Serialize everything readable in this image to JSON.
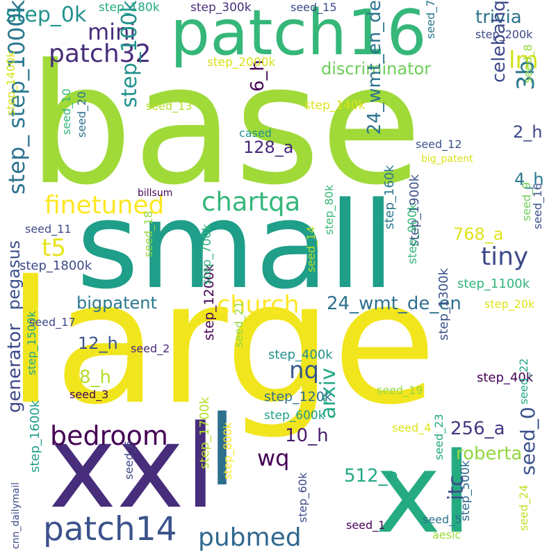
{
  "words": [
    {
      "text": "base",
      "color": "#a0da39"
    },
    {
      "text": "large",
      "color": "#f1e51d"
    },
    {
      "text": "small",
      "color": "#1f9e89"
    },
    {
      "text": "xxl",
      "color": "#472d7b"
    },
    {
      "text": "xl",
      "color": "#25ab82"
    },
    {
      "text": "patch16",
      "color": "#35b779"
    },
    {
      "text": "l",
      "color": "#2d708e"
    },
    {
      "text": "patch32",
      "color": "#472c7a"
    },
    {
      "text": "patch14",
      "color": "#3b528b"
    },
    {
      "text": "bedroom",
      "color": "#440154"
    },
    {
      "text": "finetuned",
      "color": "#fde725"
    },
    {
      "text": "chartqa",
      "color": "#35b779"
    },
    {
      "text": "church",
      "color": "#fde725"
    },
    {
      "text": "pubmed",
      "color": "#31688e"
    },
    {
      "text": "tiny",
      "color": "#3e4989"
    },
    {
      "text": "mini",
      "color": "#472d7b"
    },
    {
      "text": "step_0k",
      "color": "#21918c"
    },
    {
      "text": "step_1000k",
      "color": "#2a788e"
    },
    {
      "text": "step_100k",
      "color": "#21918c"
    },
    {
      "text": "discriminator",
      "color": "#6ece58"
    },
    {
      "text": "trivia",
      "color": "#2c728e"
    },
    {
      "text": "lm",
      "color": "#d2e21b"
    },
    {
      "text": "celebahq",
      "color": "#3e4989"
    },
    {
      "text": "3b",
      "color": "#2a788e"
    },
    {
      "text": "t5",
      "color": "#e5e419"
    },
    {
      "text": "nq",
      "color": "#38598c"
    },
    {
      "text": "wq",
      "color": "#440154"
    },
    {
      "text": "arxiv",
      "color": "#22a884"
    },
    {
      "text": "roberta",
      "color": "#93d741"
    },
    {
      "text": "seed_0",
      "color": "#3b528b"
    },
    {
      "text": "itc",
      "color": "#3e4a89"
    },
    {
      "text": "24_wmt_en_de",
      "color": "#2c728e"
    },
    {
      "text": "24_wmt_de_en",
      "color": "#2d708e"
    },
    {
      "text": "bigpatent",
      "color": "#2a788e"
    },
    {
      "text": "generator",
      "color": "#3e4989"
    },
    {
      "text": "pegasus",
      "color": "#3b528b"
    },
    {
      "text": "256_a",
      "color": "#453781"
    },
    {
      "text": "512_a",
      "color": "#22a884"
    },
    {
      "text": "768_a",
      "color": "#dde318"
    },
    {
      "text": "128_a",
      "color": "#482878"
    },
    {
      "text": "10_h",
      "color": "#481d6f"
    },
    {
      "text": "12_h",
      "color": "#3b528b"
    },
    {
      "text": "8_h",
      "color": "#b5de2b"
    },
    {
      "text": "6_h",
      "color": "#440154"
    },
    {
      "text": "4_h",
      "color": "#2a788e"
    },
    {
      "text": "2_h",
      "color": "#3e4989"
    },
    {
      "text": "step_",
      "color": "#2c728e"
    },
    {
      "text": "step_1100k",
      "color": "#2fb47c"
    },
    {
      "text": "step_1200k",
      "color": "#440154"
    },
    {
      "text": "step_1300k",
      "color": "#3b528b"
    },
    {
      "text": "step_1400k",
      "color": "#d8e219"
    },
    {
      "text": "step_1500k",
      "color": "#22a884"
    },
    {
      "text": "step_1600k",
      "color": "#1f9e89"
    },
    {
      "text": "step_1700k",
      "color": "#b5de2b"
    },
    {
      "text": "step_1800k",
      "color": "#3e4989"
    },
    {
      "text": "step_1900k",
      "color": "#3b528b"
    },
    {
      "text": "step_2000k",
      "color": "#d8e219"
    },
    {
      "text": "step_20k",
      "color": "#dde318"
    },
    {
      "text": "step_40k",
      "color": "#440154"
    },
    {
      "text": "step_60k",
      "color": "#3e4989"
    },
    {
      "text": "step_80k",
      "color": "#38b977"
    },
    {
      "text": "step_120k",
      "color": "#2d708e"
    },
    {
      "text": "step_140k",
      "color": "#dde318"
    },
    {
      "text": "step_160k",
      "color": "#2a788e"
    },
    {
      "text": "step_180k",
      "color": "#22a884"
    },
    {
      "text": "step_200k",
      "color": "#3e4989"
    },
    {
      "text": "step_300k",
      "color": "#472d7b"
    },
    {
      "text": "step_400k",
      "color": "#21918c"
    },
    {
      "text": "step_500k",
      "color": "#31688e"
    },
    {
      "text": "step_600k",
      "color": "#1f9e89"
    },
    {
      "text": "step_700k",
      "color": "#2fb47c"
    },
    {
      "text": "step_800k",
      "color": "#fde725"
    },
    {
      "text": "step_900k",
      "color": "#35b779"
    },
    {
      "text": "seed_1",
      "color": "#440154"
    },
    {
      "text": "seed_2",
      "color": "#482878"
    },
    {
      "text": "seed_3",
      "color": "#440154"
    },
    {
      "text": "seed_4",
      "color": "#dde318"
    },
    {
      "text": "seed_5",
      "color": "#2c728e"
    },
    {
      "text": "seed_6",
      "color": "#3e4989"
    },
    {
      "text": "seed_7",
      "color": "#2a788e"
    },
    {
      "text": "seed_8",
      "color": "#93d741"
    },
    {
      "text": "seed_9",
      "color": "#6ece58"
    },
    {
      "text": "seed_10",
      "color": "#35b779"
    },
    {
      "text": "seed_11",
      "color": "#3e4989"
    },
    {
      "text": "seed_12",
      "color": "#3b528b"
    },
    {
      "text": "seed_13",
      "color": "#b5de2b"
    },
    {
      "text": "seed_14",
      "color": "#b5de2b"
    },
    {
      "text": "seed_15",
      "color": "#3e4989"
    },
    {
      "text": "seed_16",
      "color": "#3b528b"
    },
    {
      "text": "seed_17",
      "color": "#3e4989"
    },
    {
      "text": "seed_18",
      "color": "#93d741"
    },
    {
      "text": "seed_19",
      "color": "#93d741"
    },
    {
      "text": "seed_20",
      "color": "#2c728e"
    },
    {
      "text": "seed_21",
      "color": "#93d741"
    },
    {
      "text": "seed_22",
      "color": "#22a884"
    },
    {
      "text": "seed_23",
      "color": "#22a884"
    },
    {
      "text": "seed_24",
      "color": "#c2df23"
    },
    {
      "text": "cased",
      "color": "#21918c"
    },
    {
      "text": "billsum",
      "color": "#440154"
    },
    {
      "text": "big_patent",
      "color": "#d8e219"
    },
    {
      "text": "aeslc",
      "color": "#a0da39"
    },
    {
      "text": "cnn_dailymail",
      "color": "#3e4989"
    }
  ]
}
